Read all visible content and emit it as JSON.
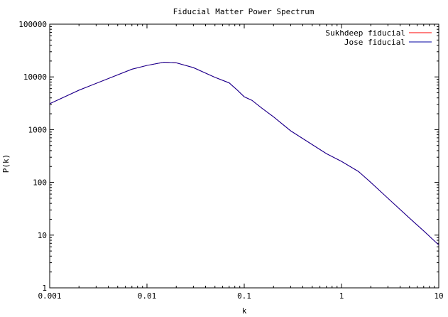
{
  "chart_data": {
    "type": "line",
    "title": "Fiducial Matter Power Spectrum",
    "xlabel": "k",
    "ylabel": "P(k)",
    "x_scale": "log",
    "y_scale": "log",
    "xlim": [
      0.001,
      10
    ],
    "ylim": [
      1,
      100000
    ],
    "x_ticks": [
      {
        "value": 0.001,
        "label": "0.001"
      },
      {
        "value": 0.01,
        "label": "0.01"
      },
      {
        "value": 0.1,
        "label": "0.1"
      },
      {
        "value": 1,
        "label": "1"
      },
      {
        "value": 10,
        "label": "10"
      }
    ],
    "y_ticks": [
      {
        "value": 1,
        "label": "1"
      },
      {
        "value": 10,
        "label": "10"
      },
      {
        "value": 100,
        "label": "100"
      },
      {
        "value": 1000,
        "label": "1000"
      },
      {
        "value": 10000,
        "label": "10000"
      },
      {
        "value": 100000,
        "label": "100000"
      }
    ],
    "grid": false,
    "legend_position": "top-right",
    "x": [
      0.001,
      0.002,
      0.004,
      0.007,
      0.01,
      0.015,
      0.02,
      0.03,
      0.05,
      0.07,
      0.085,
      0.1,
      0.12,
      0.15,
      0.2,
      0.3,
      0.5,
      0.7,
      1,
      1.5,
      2,
      3,
      5,
      7,
      10
    ],
    "series": [
      {
        "name": "Sukhdeep fiducial",
        "color": "#ff0000",
        "values": [
          3100,
          5600,
          9300,
          14000,
          16500,
          19000,
          18500,
          15000,
          9800,
          7700,
          5600,
          4200,
          3600,
          2600,
          1750,
          950,
          520,
          350,
          250,
          160,
          100,
          50,
          21,
          12,
          6.5
        ]
      },
      {
        "name": "Jose fiducial",
        "color": "#0000a0",
        "values": [
          3100,
          5600,
          9300,
          14000,
          16500,
          19000,
          18500,
          15000,
          9800,
          7700,
          5600,
          4200,
          3600,
          2600,
          1750,
          950,
          520,
          350,
          250,
          160,
          100,
          50,
          21,
          12,
          6.5
        ]
      }
    ]
  }
}
